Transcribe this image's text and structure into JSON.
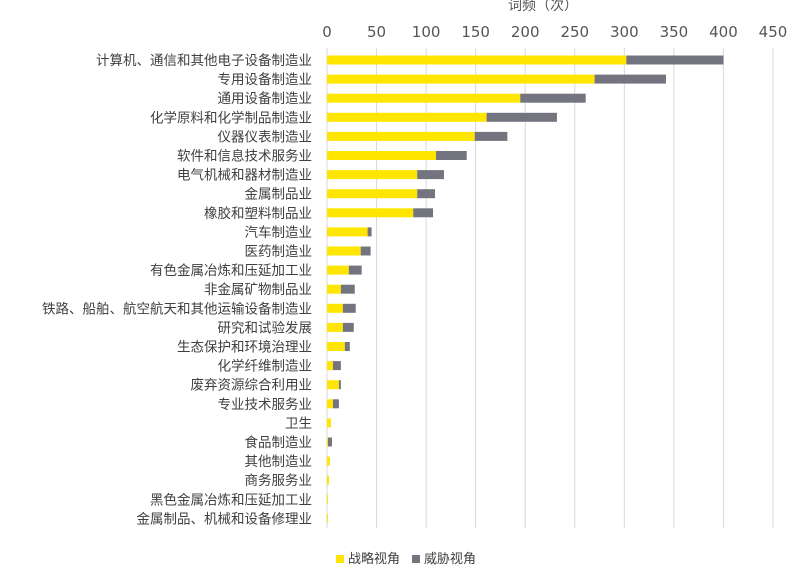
{
  "chart_data": {
    "type": "bar",
    "orientation": "horizontal",
    "stacked": true,
    "xlabel": "词频（次）",
    "xlim": [
      0,
      450
    ],
    "xticks": [
      0,
      50,
      100,
      150,
      200,
      250,
      300,
      350,
      400,
      450
    ],
    "grid": true,
    "legend_position": "bottom",
    "categories": [
      "计算机、通信和其他电子设备制造业",
      "专用设备制造业",
      "通用设备制造业",
      "化学原料和化学制品制造业",
      "仪器仪表制造业",
      "软件和信息技术服务业",
      "电气机械和器材制造业",
      "金属制品业",
      "橡胶和塑料制品业",
      "汽车制造业",
      "医药制造业",
      "有色金属冶炼和压延加工业",
      "非金属矿物制品业",
      "铁路、船舶、航空航天和其他运输设备制造业",
      "研究和试验发展",
      "生态保护和环境治理业",
      "化学纤维制造业",
      "废弃资源综合利用业",
      "专业技术服务业",
      "卫生",
      "食品制造业",
      "其他制造业",
      "商务服务业",
      "黑色金属冶炼和压延加工业",
      "金属制品、机械和设备修理业"
    ],
    "series": [
      {
        "name": "战略视角",
        "color": "#FFE600",
        "values": [
          302,
          270,
          195,
          161,
          149,
          110,
          91,
          91,
          87,
          41,
          34,
          22,
          14,
          16,
          16,
          18,
          6,
          12,
          6,
          4,
          1,
          3,
          2,
          1,
          1
        ]
      },
      {
        "name": "威胁视角",
        "color": "#747480",
        "values": [
          98,
          72,
          66,
          71,
          33,
          31,
          27,
          18,
          20,
          4,
          10,
          13,
          14,
          13,
          11,
          5,
          8,
          2,
          6,
          0,
          4,
          0,
          0,
          0,
          0
        ]
      }
    ]
  }
}
